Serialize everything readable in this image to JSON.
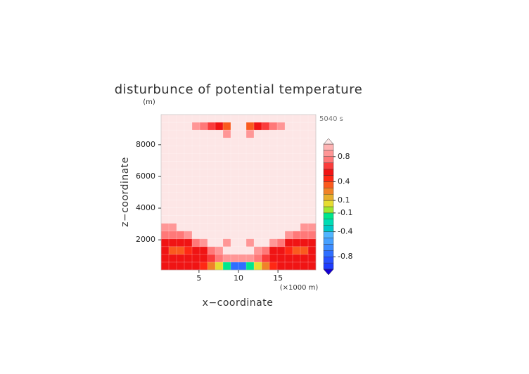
{
  "chart_data": {
    "type": "contour",
    "title": "disturbunce of potential temperature",
    "y_unit": "(m)",
    "time_label": "5040 s",
    "x_label": "x−coordinate",
    "y_label": "z−coordinate",
    "x_unit": "(×1000 m)",
    "xlim": [
      0.2,
      19.8
    ],
    "ylim": [
      100,
      9900
    ],
    "xticks": [
      5,
      10,
      15
    ],
    "yticks": [
      2000,
      4000,
      6000,
      8000
    ],
    "z": [
      [
        1.05,
        1.05,
        1.05,
        1.05,
        1.05,
        1.05,
        1.05,
        1.05,
        1.05,
        1.05,
        1.05,
        1.05,
        1.05,
        1.05,
        1.05,
        1.05,
        1.05,
        1.05,
        1.05,
        1.05
      ],
      [
        1.05,
        1.05,
        1.05,
        1.05,
        0.85,
        0.75,
        0.65,
        0.55,
        0.3,
        1.05,
        1.05,
        0.3,
        0.55,
        0.65,
        0.75,
        0.85,
        1.05,
        1.05,
        1.05,
        1.05
      ],
      [
        1.05,
        1.05,
        1.05,
        1.05,
        1.05,
        1.05,
        1.05,
        1.05,
        0.85,
        1.05,
        1.05,
        0.85,
        1.05,
        1.05,
        1.05,
        1.05,
        1.05,
        1.05,
        1.05,
        1.05
      ],
      [
        1.05,
        1.05,
        1.05,
        1.05,
        1.05,
        1.05,
        1.05,
        1.05,
        1.05,
        1.05,
        1.05,
        1.05,
        1.05,
        1.05,
        1.05,
        1.05,
        1.05,
        1.05,
        1.05,
        1.05
      ],
      [
        1.05,
        1.05,
        1.05,
        1.05,
        1.05,
        1.05,
        1.05,
        1.05,
        1.05,
        1.05,
        1.05,
        1.05,
        1.05,
        1.05,
        1.05,
        1.05,
        1.05,
        1.05,
        1.05,
        1.05
      ],
      [
        1.05,
        1.05,
        1.05,
        1.05,
        1.05,
        1.05,
        1.05,
        1.05,
        1.05,
        1.05,
        1.05,
        1.05,
        1.05,
        1.05,
        1.05,
        1.05,
        1.05,
        1.05,
        1.05,
        1.05
      ],
      [
        1.05,
        1.05,
        1.05,
        1.05,
        1.05,
        1.05,
        1.05,
        1.05,
        1.05,
        1.05,
        1.05,
        1.05,
        1.05,
        1.05,
        1.05,
        1.05,
        1.05,
        1.05,
        1.05,
        1.05
      ],
      [
        1.05,
        1.05,
        1.05,
        1.05,
        1.05,
        1.05,
        1.05,
        1.05,
        1.05,
        1.05,
        1.05,
        1.05,
        1.05,
        1.05,
        1.05,
        1.05,
        1.05,
        1.05,
        1.05,
        1.05
      ],
      [
        1.05,
        1.05,
        1.05,
        1.05,
        1.05,
        1.05,
        1.05,
        1.05,
        1.05,
        1.05,
        1.05,
        1.05,
        1.05,
        1.05,
        1.05,
        1.05,
        1.05,
        1.05,
        1.05,
        1.05
      ],
      [
        1.05,
        1.05,
        1.05,
        1.05,
        1.05,
        1.05,
        1.05,
        1.05,
        1.05,
        1.05,
        1.05,
        1.05,
        1.05,
        1.05,
        1.05,
        1.05,
        1.05,
        1.05,
        1.05,
        1.05
      ],
      [
        1.05,
        1.05,
        1.05,
        1.05,
        1.05,
        1.05,
        1.05,
        1.05,
        1.05,
        1.05,
        1.05,
        1.05,
        1.05,
        1.05,
        1.05,
        1.05,
        1.05,
        1.05,
        1.05,
        1.05
      ],
      [
        1.05,
        1.05,
        1.05,
        1.05,
        1.05,
        1.05,
        1.05,
        1.05,
        1.05,
        1.05,
        1.05,
        1.05,
        1.05,
        1.05,
        1.05,
        1.05,
        1.05,
        1.05,
        1.05,
        1.05
      ],
      [
        1.05,
        1.05,
        1.05,
        1.05,
        1.05,
        1.05,
        1.05,
        1.05,
        1.05,
        1.05,
        1.05,
        1.05,
        1.05,
        1.05,
        1.05,
        1.05,
        1.05,
        1.05,
        1.05,
        1.05
      ],
      [
        1.05,
        1.05,
        1.05,
        1.05,
        1.05,
        1.05,
        1.05,
        1.05,
        1.05,
        1.05,
        1.05,
        1.05,
        1.05,
        1.05,
        1.05,
        1.05,
        1.05,
        1.05,
        1.05,
        1.05
      ],
      [
        0.85,
        0.85,
        1.05,
        1.05,
        1.05,
        1.05,
        1.05,
        1.05,
        1.05,
        1.05,
        1.05,
        1.05,
        1.05,
        1.05,
        1.05,
        1.05,
        1.05,
        1.05,
        0.85,
        0.85
      ],
      [
        0.75,
        0.75,
        0.75,
        0.85,
        1.05,
        1.05,
        1.05,
        1.05,
        1.05,
        1.05,
        1.05,
        1.05,
        1.05,
        1.05,
        1.05,
        1.05,
        0.85,
        0.75,
        0.75,
        0.75
      ],
      [
        0.55,
        0.55,
        0.55,
        0.55,
        0.75,
        0.85,
        1.05,
        1.05,
        0.85,
        1.05,
        1.05,
        0.85,
        1.05,
        1.05,
        0.85,
        0.75,
        0.55,
        0.55,
        0.55,
        0.55
      ],
      [
        0.55,
        0.35,
        0.35,
        0.45,
        0.55,
        0.55,
        0.75,
        0.85,
        1.05,
        1.05,
        1.05,
        1.05,
        0.85,
        0.75,
        0.55,
        0.55,
        0.45,
        0.35,
        0.35,
        0.55
      ],
      [
        0.55,
        0.55,
        0.55,
        0.55,
        0.55,
        0.55,
        0.6,
        0.75,
        0.85,
        0.85,
        0.85,
        0.85,
        0.75,
        0.6,
        0.55,
        0.55,
        0.55,
        0.55,
        0.55,
        0.55
      ],
      [
        0.55,
        0.55,
        0.55,
        0.55,
        0.55,
        0.45,
        0.25,
        0.05,
        -0.15,
        -0.75,
        -0.75,
        -0.15,
        0.05,
        0.25,
        0.45,
        0.55,
        0.55,
        0.55,
        0.55,
        0.55
      ]
    ],
    "colorbar": {
      "levels": [
        -1.0,
        -0.9,
        -0.8,
        -0.7,
        -0.6,
        -0.5,
        -0.4,
        -0.3,
        -0.2,
        -0.1,
        0.0,
        0.1,
        0.2,
        0.3,
        0.4,
        0.5,
        0.6,
        0.7,
        0.8,
        0.9,
        1.0
      ],
      "colors": [
        "#1e3cff",
        "#2850ff",
        "#2f6eff",
        "#3c8cff",
        "#46a0ff",
        "#50b4ff",
        "#00c8c8",
        "#00dcb4",
        "#00e68c",
        "#a0e632",
        "#e6dc32",
        "#e6af2d",
        "#f08228",
        "#fa5a1e",
        "#ff2814",
        "#f01414",
        "#fa3c3c",
        "#ff7878",
        "#ff9696",
        "#ffb4b4"
      ],
      "under_color": "#1400d2",
      "over_color": "#fde6e6",
      "ticks": [
        -0.8,
        -0.4,
        -0.1,
        0.1,
        0.4,
        0.8
      ]
    }
  }
}
